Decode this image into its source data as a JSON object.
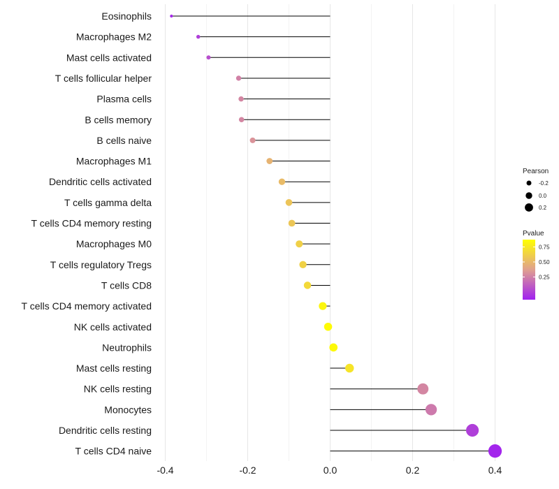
{
  "chart_data": {
    "type": "lollipop",
    "xlim": [
      -0.4,
      0.4
    ],
    "x_ticks": [
      -0.4,
      -0.2,
      0.0,
      0.2,
      0.4
    ],
    "x_tick_labels": [
      "-0.4",
      "-0.2",
      "0.0",
      "0.2",
      "0.4"
    ],
    "minor_gridlines": [
      -0.3,
      -0.1,
      0.1,
      0.3
    ],
    "grid": true,
    "colors": {
      "low": "#a020f0",
      "mid": "#e0a08f",
      "high": "#ffff00",
      "stem": "#000000"
    },
    "categories": [
      "Eosinophils",
      "Macrophages M2",
      "Mast cells activated",
      "T cells follicular helper",
      "Plasma cells",
      "B cells memory",
      "B cells naive",
      "Macrophages M1",
      "Dendritic cells activated",
      "T cells gamma delta",
      "T cells CD4 memory resting",
      "Macrophages M0",
      "T cells regulatory  Tregs",
      "T cells CD8",
      "T cells CD4 memory activated",
      "NK cells activated",
      "Neutrophils",
      "Mast cells resting",
      "NK cells resting",
      "Monocytes",
      "Dendritic cells resting",
      "T cells CD4 naive"
    ],
    "pearson": [
      -0.385,
      -0.32,
      -0.295,
      -0.222,
      -0.216,
      -0.215,
      -0.188,
      -0.147,
      -0.117,
      -0.1,
      -0.093,
      -0.075,
      -0.066,
      -0.055,
      -0.018,
      -0.005,
      0.008,
      0.047,
      0.225,
      0.245,
      0.345,
      0.4
    ],
    "pvalue": [
      0.04,
      0.12,
      0.18,
      0.38,
      0.4,
      0.4,
      0.45,
      0.6,
      0.64,
      0.69,
      0.7,
      0.75,
      0.76,
      0.8,
      0.95,
      0.98,
      0.97,
      0.86,
      0.4,
      0.35,
      0.12,
      0.02
    ],
    "legend": {
      "size_title": "Pearson",
      "size_labels": [
        "-0.2",
        "0.0",
        "0.2"
      ],
      "size_values": [
        -0.2,
        0.0,
        0.2
      ],
      "color_title": "Pvalue",
      "color_labels": [
        "0.75",
        "0.50",
        "0.25"
      ],
      "color_values": [
        0.75,
        0.5,
        0.25
      ],
      "color_range": [
        0.0,
        1.0
      ],
      "placement": "right"
    }
  }
}
